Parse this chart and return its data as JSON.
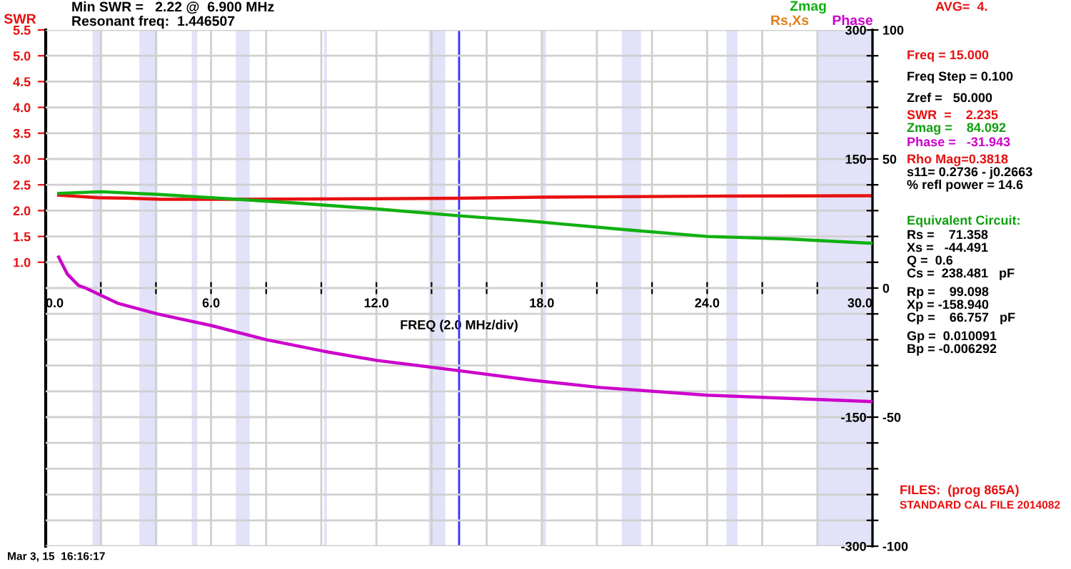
{
  "chart_data": {
    "type": "line",
    "title": "Min SWR =   2.22 @  6.900 MHz",
    "subtitle": "Resonant freq:  1.446507",
    "xlabel": "FREQ (2.0 MHz/div)",
    "ylabel": "SWR",
    "y2label": "Rs,Xs",
    "xlim": [
      0,
      30
    ],
    "xticks": [
      {
        "value": 0,
        "label": "0.0"
      },
      {
        "value": 2,
        "label": null
      },
      {
        "value": 4,
        "label": null
      },
      {
        "value": 6,
        "label": "6.0"
      },
      {
        "value": 8,
        "label": null
      },
      {
        "value": 10,
        "label": null
      },
      {
        "value": 12,
        "label": "12.0"
      },
      {
        "value": 14,
        "label": null
      },
      {
        "value": 16,
        "label": null
      },
      {
        "value": 18,
        "label": "18.0"
      },
      {
        "value": 20,
        "label": null
      },
      {
        "value": 22,
        "label": null
      },
      {
        "value": 24,
        "label": "24.0"
      },
      {
        "value": 26,
        "label": null
      },
      {
        "value": 28,
        "label": null
      },
      {
        "value": 30,
        "label": "30.0"
      }
    ],
    "ylim": [
      -4.5,
      5.5
    ],
    "yticks": [
      {
        "value": 1,
        "label": "1.0"
      },
      {
        "value": 1.5,
        "label": "1.5"
      },
      {
        "value": 2,
        "label": "2.0"
      },
      {
        "value": 2.5,
        "label": "2.5"
      },
      {
        "value": 3,
        "label": "3.0"
      },
      {
        "value": 3.5,
        "label": "3.5"
      },
      {
        "value": 4,
        "label": "4.0"
      },
      {
        "value": 4.5,
        "label": "4.5"
      },
      {
        "value": 5,
        "label": "5.0"
      },
      {
        "value": 5.5,
        "label": "5.5"
      }
    ],
    "y2lim": [
      -300,
      300
    ],
    "y2ticks": [
      {
        "value": 300,
        "label": "300"
      },
      {
        "value": 150,
        "label": "150"
      },
      {
        "value": -150,
        "label": "-150"
      },
      {
        "value": -300,
        "label": "-300"
      }
    ],
    "y3lim": [
      -100,
      100
    ],
    "y3ticks": [
      {
        "value": 100,
        "label": "100"
      },
      {
        "value": 90,
        "label": null
      },
      {
        "value": 80,
        "label": null
      },
      {
        "value": 70,
        "label": null
      },
      {
        "value": 60,
        "label": null
      },
      {
        "value": 50,
        "label": "50"
      },
      {
        "value": 40,
        "label": null
      },
      {
        "value": 30,
        "label": null
      },
      {
        "value": 20,
        "label": null
      },
      {
        "value": 10,
        "label": null
      },
      {
        "value": 0,
        "label": "0"
      },
      {
        "value": -10,
        "label": null
      },
      {
        "value": -20,
        "label": null
      },
      {
        "value": -30,
        "label": null
      },
      {
        "value": -40,
        "label": null
      },
      {
        "value": -50,
        "label": "-50"
      },
      {
        "value": -60,
        "label": null
      },
      {
        "value": -70,
        "label": null
      },
      {
        "value": -80,
        "label": null
      },
      {
        "value": -90,
        "label": null
      },
      {
        "value": -100,
        "label": "-100"
      }
    ],
    "grid": true,
    "series": [
      {
        "color": "#e81010",
        "x": [
          0.47,
          1.9,
          3,
          4.2,
          7,
          12,
          15,
          18,
          24,
          30
        ],
        "values": [
          2.3,
          2.25,
          2.24,
          2.22,
          2.22,
          2.23,
          2.24,
          2.26,
          2.28,
          2.29
        ]
      },
      {
        "name": "Zmag",
        "axis": "y2",
        "color": "#10b010",
        "x": [
          0.47,
          2,
          4,
          6,
          9,
          12,
          15,
          17.5,
          21,
          24,
          27,
          30
        ],
        "values": [
          110,
          112,
          109,
          105,
          99,
          92,
          84,
          78,
          68,
          60,
          57,
          52
        ]
      },
      {
        "name": "Phase",
        "axis": "y3",
        "color": "#cc00cc",
        "x": [
          0.47,
          0.78,
          1.19,
          1.45,
          2.64,
          4.04,
          6,
          8,
          10.1,
          12,
          15,
          17.5,
          20.1,
          24,
          30
        ],
        "values": [
          12,
          5.5,
          1,
          0,
          -6,
          -10,
          -14.5,
          -20,
          -24.5,
          -28,
          -32,
          -35.5,
          -38.5,
          -41.5,
          -44
        ]
      }
    ],
    "bands": [
      {
        "axis": "x",
        "from": 1.7,
        "to": 2.05,
        "color": "#e2e2f8"
      },
      {
        "axis": "x",
        "from": 3.4,
        "to": 4.05,
        "color": "#e2e2f8"
      },
      {
        "axis": "x",
        "from": 5.3,
        "to": 5.5,
        "color": "#e2e2f8"
      },
      {
        "axis": "x",
        "from": 6.9,
        "to": 7.4,
        "color": "#e2e2f8"
      },
      {
        "axis": "x",
        "from": 10.1,
        "to": 10.2,
        "color": "#e2e2f8"
      },
      {
        "axis": "x",
        "from": 13.9,
        "to": 14.5,
        "color": "#e2e2f8"
      },
      {
        "axis": "x",
        "from": 18.0,
        "to": 18.15,
        "color": "#e2e2f8"
      },
      {
        "axis": "x",
        "from": 20.9,
        "to": 21.6,
        "color": "#e2e2f8"
      },
      {
        "axis": "x",
        "from": 24.7,
        "to": 25.1,
        "color": "#e2e2f8"
      },
      {
        "axis": "x",
        "from": 28.0,
        "to": 30.0,
        "color": "#e2e2f8"
      }
    ],
    "ref_lines": [
      {
        "axis": "x",
        "value": 15,
        "color": "#3030ff"
      }
    ],
    "annotations": [
      "AVG=  4.",
      "Freq = 15.000",
      "Freq Step = 0.100",
      "Zref =   50.000",
      "SWR  =    2.235",
      "Zmag =    84.092",
      "Phase =   -31.943",
      "Rho Mag=0.3818",
      "s11= 0.2736 - j0.2663",
      "% refl power = 14.6",
      "Equivalent Circuit:",
      "Rs =    71.358",
      "Xs =   -44.491",
      "Q =  0.6",
      "Cs =  238.481   pF",
      "Rp =    99.098",
      "Xp = -158.940",
      "Cp =    66.757   pF",
      "Gp =  0.010091",
      "Bp = -0.006292",
      "FILES:  (prog 865A)",
      "STANDARD CAL FILE 2014082",
      "Mar 3, 15  16:16:17"
    ]
  }
}
